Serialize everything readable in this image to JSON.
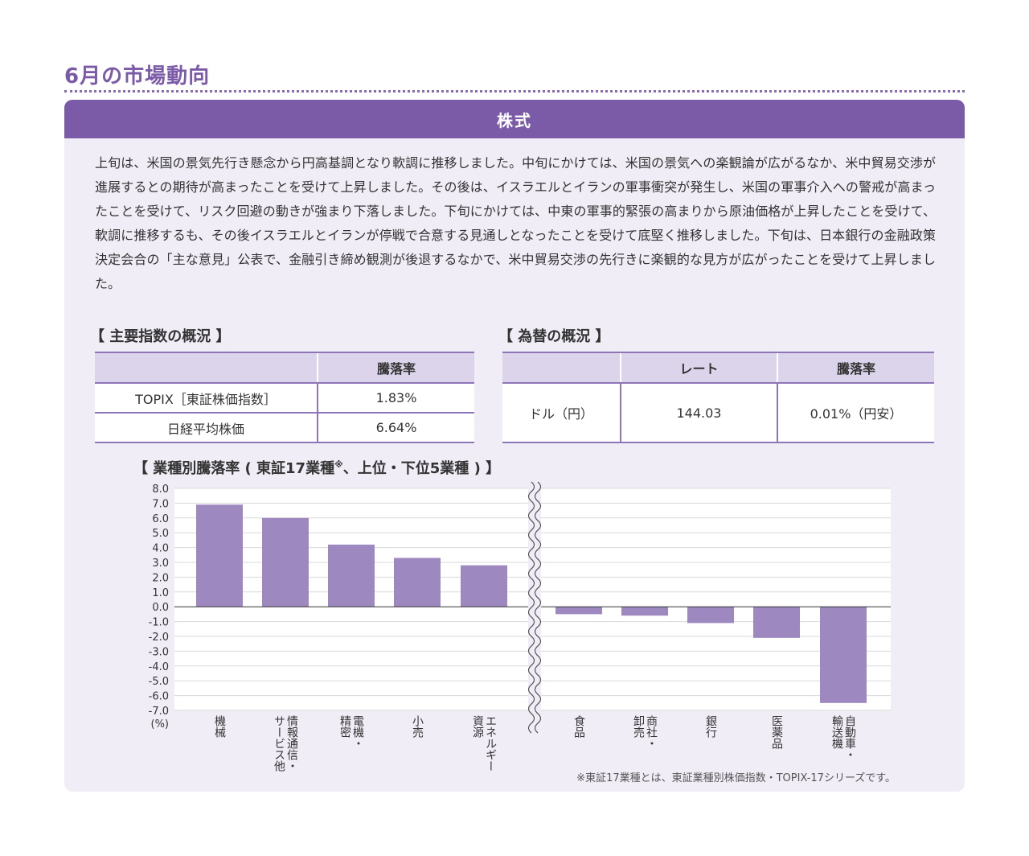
{
  "page": {
    "title": "6月の市場動向",
    "section_title": "株式",
    "paragraph": "上旬は、米国の景気先行き懸念から円高基調となり軟調に推移しました。中旬にかけては、米国の景気への楽観論が広がるなか、米中貿易交渉が進展するとの期待が高まったことを受けて上昇しました。その後は、イスラエルとイランの軍事衝突が発生し、米国の軍事介入への警戒が高まったことを受けて、リスク回避の動きが強まり下落しました。下旬にかけては、中東の軍事的緊張の高まりから原油価格が上昇したことを受けて、軟調に推移するも、その後イスラエルとイランが停戦で合意する見通しとなったことを受けて底堅く推移しました。下旬は、日本銀行の金融政策決定会合の「主な意見」公表で、金融引き締め観測が後退するなかで、米中貿易交渉の先行きに楽観的な見方が広がったことを受けて上昇しました。",
    "footnote": "※東証17業種とは、東証業種別株価指数・TOPIX-17シリーズです。"
  },
  "indices_table": {
    "title": "【 主要指数の概況 】",
    "header": [
      "",
      "騰落率"
    ],
    "rows": [
      [
        "TOPIX［東証株価指数］",
        "1.83%"
      ],
      [
        "日経平均株価",
        "6.64%"
      ]
    ]
  },
  "fx_table": {
    "title": "【 為替の概況 】",
    "header": [
      "",
      "レート",
      "騰落率"
    ],
    "rows": [
      [
        "ドル（円）",
        "144.03",
        "0.01%（円安）"
      ]
    ]
  },
  "chart_data": {
    "type": "bar",
    "title_main": "【 業種別騰落率 ( 東証17業種",
    "title_mark": "※",
    "title_rest": "、上位・下位5業種 ) 】",
    "unit_label": "(%)",
    "ylim": [
      -7.0,
      8.0
    ],
    "ytick_step": 1.0,
    "grid": true,
    "axis_break": true,
    "bar_color": "#9d88c0",
    "categories": [
      "機械",
      "情報通信・サービス他",
      "電機・精密",
      "小売",
      "エネルギー資源",
      "食品",
      "商社・卸売",
      "銀行",
      "医薬品",
      "自動車・輸送機"
    ],
    "category_label_columns": [
      [
        "機械"
      ],
      [
        "情報通信・",
        "サービス他"
      ],
      [
        "電機・",
        "精密"
      ],
      [
        "小売"
      ],
      [
        "エネルギー",
        "資源"
      ],
      [
        "食品"
      ],
      [
        "商社・",
        "卸売"
      ],
      [
        "銀行"
      ],
      [
        "医薬品"
      ],
      [
        "自動車・",
        "輸送機"
      ]
    ],
    "values": [
      6.9,
      6.0,
      4.2,
      3.3,
      2.8,
      -0.5,
      -0.6,
      -1.1,
      -2.1,
      -6.5
    ]
  }
}
